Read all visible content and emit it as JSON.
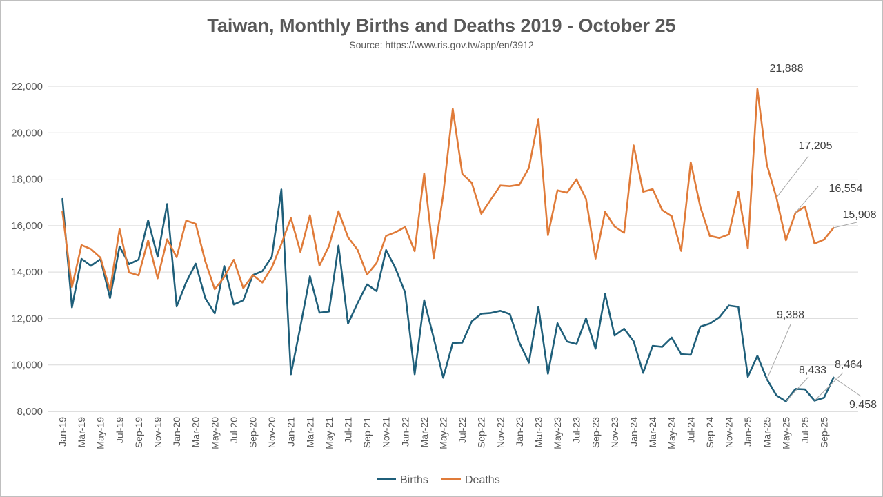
{
  "chart_data": {
    "type": "line",
    "title": "Taiwan, Monthly Births and Deaths 2019 - October 25",
    "subtitle": "Source: https://www.ris.gov.tw/app/en/3912",
    "xlabel": "",
    "ylabel": "",
    "ylim": [
      8000,
      22000
    ],
    "yticks": [
      "8,000",
      "10,000",
      "12,000",
      "14,000",
      "16,000",
      "18,000",
      "20,000",
      "22,000"
    ],
    "grid": "horizontal",
    "legend_position": "bottom",
    "x_tick_labels": [
      "Jan-19",
      "Mar-19",
      "May-19",
      "Jul-19",
      "Sep-19",
      "Nov-19",
      "Jan-20",
      "Mar-20",
      "May-20",
      "Jul-20",
      "Sep-20",
      "Nov-20",
      "Jan-21",
      "Mar-21",
      "May-21",
      "Jul-21",
      "Sep-21",
      "Nov-21",
      "Jan-22",
      "Mar-22",
      "May-22",
      "Jul-22",
      "Sep-22",
      "Nov-22",
      "Jan-23",
      "Mar-23",
      "May-23",
      "Jul-23",
      "Sep-23",
      "Nov-23",
      "Jan-24",
      "Mar-24",
      "May-24",
      "Jul-24",
      "Sep-24",
      "Nov-24",
      "Jan-25",
      "Mar-25",
      "May-25",
      "Jul-25",
      "Sep-25"
    ],
    "series": [
      {
        "name": "Births",
        "color": "#1f5f7a",
        "values": [
          17150,
          12480,
          14570,
          14270,
          14560,
          12880,
          15100,
          14340,
          14540,
          16230,
          14660,
          16930,
          12520,
          13560,
          14360,
          12880,
          12220,
          14260,
          12600,
          12790,
          13870,
          14040,
          14660,
          17560,
          9600,
          11660,
          13820,
          12250,
          12300,
          15140,
          11780,
          12660,
          13470,
          13180,
          14950,
          14150,
          13120,
          9600,
          12790,
          11160,
          9450,
          10950,
          10960,
          11880,
          12210,
          12240,
          12330,
          12190,
          10960,
          10100,
          12510,
          9620,
          11800,
          11010,
          10900,
          12010,
          10700,
          13060,
          11270,
          11560,
          11020,
          9660,
          10820,
          10780,
          11180,
          10460,
          10440,
          11650,
          11780,
          12050,
          12560,
          12500,
          9490,
          10400,
          9388,
          8690,
          8433,
          8970,
          8950,
          8464,
          8590,
          9458
        ]
      },
      {
        "name": "Deaths",
        "color": "#e07b39",
        "values": [
          16600,
          13350,
          15160,
          14990,
          14620,
          13220,
          15860,
          13980,
          13860,
          15370,
          13730,
          15410,
          14640,
          16220,
          16080,
          14470,
          13260,
          13790,
          14530,
          13310,
          13870,
          13550,
          14200,
          15210,
          16330,
          14870,
          16450,
          14280,
          15120,
          16620,
          15500,
          14960,
          13890,
          14390,
          15560,
          15720,
          15940,
          14900,
          18250,
          14600,
          17340,
          21030,
          18230,
          17840,
          16510,
          17120,
          17730,
          17700,
          17760,
          18480,
          20590,
          15590,
          17520,
          17420,
          17990,
          17150,
          14580,
          16590,
          15960,
          15690,
          19460,
          17460,
          17570,
          16670,
          16410,
          14910,
          18730,
          16820,
          15560,
          15470,
          15620,
          17460,
          15020,
          21888,
          18620,
          17205,
          15370,
          16554,
          16820,
          15230,
          15400,
          15908
        ]
      }
    ],
    "annotations": [
      {
        "series": "Deaths",
        "label": "21,888"
      },
      {
        "series": "Deaths",
        "label": "17,205"
      },
      {
        "series": "Deaths",
        "label": "16,554"
      },
      {
        "series": "Deaths",
        "label": "15,908"
      },
      {
        "series": "Births",
        "label": "9,388"
      },
      {
        "series": "Births",
        "label": "8,433"
      },
      {
        "series": "Births",
        "label": "8,464"
      },
      {
        "series": "Births",
        "label": "9,458"
      }
    ]
  }
}
